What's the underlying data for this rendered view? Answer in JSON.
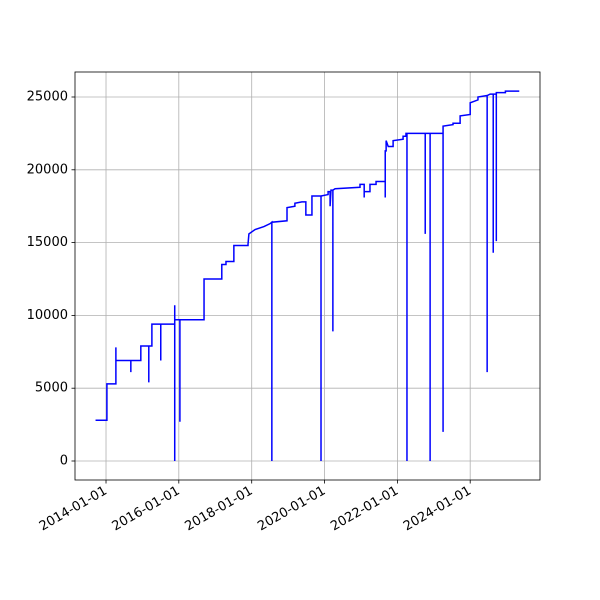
{
  "chart_data": {
    "type": "line",
    "color": "#0000ff",
    "grid": true,
    "xlim": [
      "2013-02-24",
      "2025-12-01"
    ],
    "xticks": [
      "2014-01-01",
      "2016-01-01",
      "2018-01-01",
      "2020-01-01",
      "2022-01-01",
      "2024-01-01"
    ],
    "ylim": [
      -1305,
      26717
    ],
    "yticks": [
      0,
      5000,
      10000,
      15000,
      20000,
      25000
    ],
    "x": [
      "2013-09-18",
      "2014-01-10",
      "2014-01-10",
      "2014-04-10",
      "2014-04-10",
      "2014-04-10",
      "2014-09-07",
      "2014-09-07",
      "2014-09-07",
      "2014-12-16",
      "2014-12-16",
      "2015-03-06",
      "2015-03-06",
      "2015-03-06",
      "2015-04-06",
      "2015-04-06",
      "2015-07-04",
      "2015-07-04",
      "2015-07-04",
      "2015-11-21",
      "2015-11-21",
      "2015-11-21",
      "2015-11-21",
      "2016-01-12",
      "2016-01-12",
      "2016-01-12",
      "2016-09-10",
      "2016-09-10",
      "2017-03-07",
      "2017-03-07",
      "2017-04-18",
      "2017-04-18",
      "2017-07-06",
      "2017-07-06",
      "2017-11-25",
      "2017-11-25",
      "2017-12-04",
      "2018-02-04",
      "2018-05-04",
      "2018-07-04",
      "2018-07-22",
      "2018-07-22",
      "2018-07-22",
      "2018-12-21",
      "2018-12-21",
      "2019-03-10",
      "2019-03-10",
      "2019-05-19",
      "2019-06-28",
      "2019-06-28",
      "2019-08-28",
      "2019-08-28",
      "2019-11-27",
      "2019-11-27",
      "2019-11-27",
      "2020-02-06",
      "2020-02-06",
      "2020-02-26",
      "2020-02-26",
      "2020-03-06",
      "2020-03-25",
      "2020-03-25",
      "2020-03-25",
      "2020-04-16",
      "2020-12-22",
      "2020-12-22",
      "2021-02-02",
      "2021-02-02",
      "2021-02-02",
      "2021-04-01",
      "2021-04-01",
      "2021-06-01",
      "2021-06-01",
      "2021-09-01",
      "2021-09-01",
      "2021-09-01",
      "2021-09-10",
      "2021-09-10",
      "2021-10-01",
      "2021-11-19",
      "2021-11-19",
      "2022-02-27",
      "2022-02-27",
      "2022-03-28",
      "2022-03-28",
      "2022-04-07",
      "2022-04-07",
      "2022-04-07",
      "2022-10-07",
      "2022-10-07",
      "2022-10-07",
      "2022-11-25",
      "2022-11-25",
      "2022-11-25",
      "2023-04-04",
      "2023-04-04",
      "2023-04-04",
      "2023-07-13",
      "2023-07-13",
      "2023-09-22",
      "2023-09-22",
      "2024-01-01",
      "2024-01-01",
      "2024-03-19",
      "2024-03-19",
      "2024-06-19",
      "2024-06-19",
      "2024-06-19",
      "2024-07-19",
      "2024-08-19",
      "2024-08-19",
      "2024-08-19",
      "2024-09-19",
      "2024-09-19",
      "2024-09-19",
      "2024-12-19",
      "2024-12-19",
      "2025-05-07"
    ],
    "values": [
      2800,
      2800,
      5300,
      5300,
      7800,
      6900,
      6900,
      6100,
      6900,
      6900,
      7900,
      7900,
      5400,
      7900,
      7900,
      9400,
      9400,
      6900,
      9400,
      9400,
      0,
      10700,
      9700,
      9700,
      2700,
      9700,
      9700,
      12500,
      12500,
      13500,
      13500,
      13700,
      13700,
      14800,
      14800,
      14900,
      15600,
      15900,
      16100,
      16300,
      16400,
      0,
      16400,
      16500,
      17400,
      17500,
      17700,
      17800,
      17800,
      16900,
      16900,
      18200,
      18200,
      0,
      18200,
      18300,
      18500,
      18500,
      17500,
      18600,
      18600,
      8900,
      18600,
      18700,
      18800,
      19000,
      19000,
      18100,
      18500,
      18500,
      19000,
      19000,
      19200,
      19200,
      18100,
      21300,
      21300,
      22000,
      21600,
      21600,
      22000,
      22100,
      22300,
      22300,
      22500,
      22500,
      0,
      22500,
      22500,
      15600,
      22500,
      22500,
      0,
      22500,
      22500,
      2000,
      23000,
      23100,
      23200,
      23200,
      23700,
      23800,
      24600,
      24800,
      25000,
      25100,
      6100,
      25100,
      25200,
      25200,
      14300,
      25200,
      25200,
      15100,
      25300,
      25300,
      25400,
      25400
    ]
  }
}
